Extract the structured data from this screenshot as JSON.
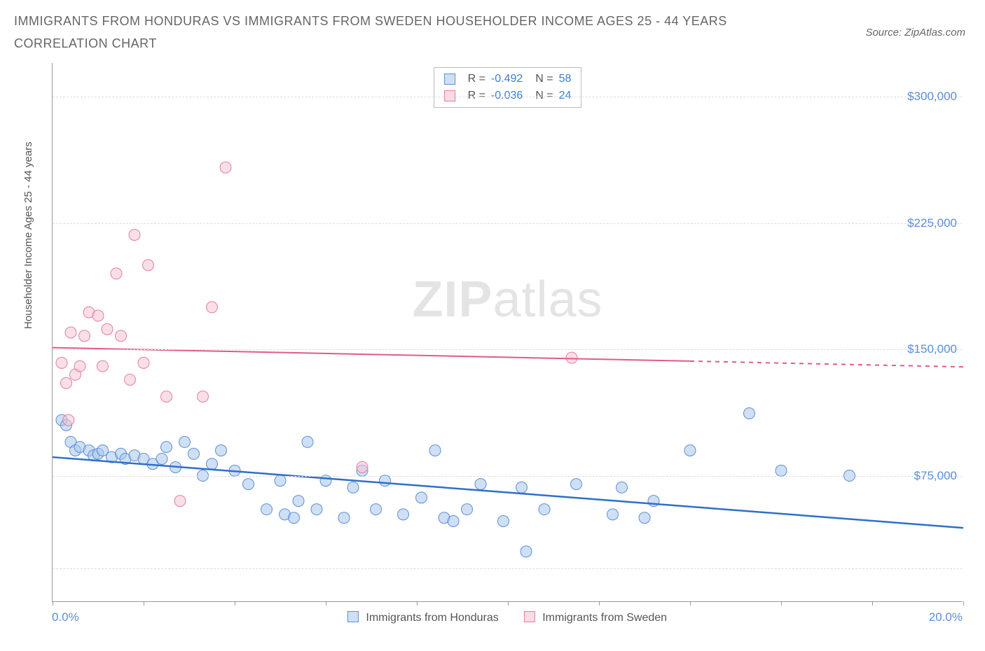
{
  "title": "IMMIGRANTS FROM HONDURAS VS IMMIGRANTS FROM SWEDEN HOUSEHOLDER INCOME AGES 25 - 44 YEARS CORRELATION CHART",
  "source_label": "Source: ZipAtlas.com",
  "watermark": {
    "part1": "ZIP",
    "part2": "atlas"
  },
  "ylabel": "Householder Income Ages 25 - 44 years",
  "chart": {
    "type": "scatter",
    "xlim": [
      0,
      20
    ],
    "ylim": [
      0,
      320000
    ],
    "xtick_positions": [
      0,
      2,
      4,
      6,
      8,
      10,
      12,
      14,
      16,
      18,
      20
    ],
    "xlabel_min": "0.0%",
    "xlabel_max": "20.0%",
    "ytick_values": [
      75000,
      150000,
      225000,
      300000
    ],
    "ytick_labels": [
      "$75,000",
      "$150,000",
      "$225,000",
      "$300,000"
    ],
    "grid_dash_extra": [
      20000
    ],
    "background_color": "#ffffff",
    "grid_color": "#dddddd",
    "axis_color": "#999999",
    "label_color": "#5b8fd6",
    "marker_radius": 8,
    "marker_opacity": 0.55,
    "series": [
      {
        "name": "Immigrants from Honduras",
        "color_fill": "#a8c7ec",
        "color_stroke": "#5b8fd6",
        "swatch_fill": "#cfe0f5",
        "R": "-0.492",
        "N": "58",
        "trend": {
          "x1": 0,
          "y1": 86000,
          "x2": 20,
          "y2": 44000,
          "color": "#2f6fc9",
          "width": 2.5
        },
        "points": [
          [
            0.2,
            108000
          ],
          [
            0.3,
            105000
          ],
          [
            0.4,
            95000
          ],
          [
            0.5,
            90000
          ],
          [
            0.6,
            92000
          ],
          [
            0.8,
            90000
          ],
          [
            0.9,
            87000
          ],
          [
            1.0,
            88000
          ],
          [
            1.1,
            90000
          ],
          [
            1.3,
            86000
          ],
          [
            1.5,
            88000
          ],
          [
            1.6,
            85000
          ],
          [
            1.8,
            87000
          ],
          [
            2.0,
            85000
          ],
          [
            2.2,
            82000
          ],
          [
            2.4,
            85000
          ],
          [
            2.5,
            92000
          ],
          [
            2.7,
            80000
          ],
          [
            2.9,
            95000
          ],
          [
            3.1,
            88000
          ],
          [
            3.3,
            75000
          ],
          [
            3.5,
            82000
          ],
          [
            3.7,
            90000
          ],
          [
            4.0,
            78000
          ],
          [
            4.3,
            70000
          ],
          [
            4.7,
            55000
          ],
          [
            5.0,
            72000
          ],
          [
            5.1,
            52000
          ],
          [
            5.3,
            50000
          ],
          [
            5.4,
            60000
          ],
          [
            5.6,
            95000
          ],
          [
            5.8,
            55000
          ],
          [
            6.0,
            72000
          ],
          [
            6.4,
            50000
          ],
          [
            6.6,
            68000
          ],
          [
            6.8,
            78000
          ],
          [
            7.1,
            55000
          ],
          [
            7.3,
            72000
          ],
          [
            7.7,
            52000
          ],
          [
            8.1,
            62000
          ],
          [
            8.4,
            90000
          ],
          [
            8.6,
            50000
          ],
          [
            8.8,
            48000
          ],
          [
            9.1,
            55000
          ],
          [
            9.4,
            70000
          ],
          [
            9.9,
            48000
          ],
          [
            10.3,
            68000
          ],
          [
            10.4,
            30000
          ],
          [
            10.8,
            55000
          ],
          [
            11.5,
            70000
          ],
          [
            12.3,
            52000
          ],
          [
            12.5,
            68000
          ],
          [
            13.0,
            50000
          ],
          [
            13.2,
            60000
          ],
          [
            14.0,
            90000
          ],
          [
            15.3,
            112000
          ],
          [
            16.0,
            78000
          ],
          [
            17.5,
            75000
          ]
        ]
      },
      {
        "name": "Immigrants from Sweden",
        "color_fill": "#f5c5d3",
        "color_stroke": "#e37fa0",
        "swatch_fill": "#f9dbe4",
        "R": "-0.036",
        "N": "24",
        "trend": {
          "x1": 0,
          "y1": 151000,
          "x2": 14,
          "y2": 143000,
          "dash_to": 20,
          "color": "#e15a8a",
          "width": 2
        },
        "points": [
          [
            0.2,
            142000
          ],
          [
            0.3,
            130000
          ],
          [
            0.4,
            160000
          ],
          [
            0.35,
            108000
          ],
          [
            0.5,
            135000
          ],
          [
            0.6,
            140000
          ],
          [
            0.7,
            158000
          ],
          [
            0.8,
            172000
          ],
          [
            1.0,
            170000
          ],
          [
            1.1,
            140000
          ],
          [
            1.2,
            162000
          ],
          [
            1.4,
            195000
          ],
          [
            1.5,
            158000
          ],
          [
            1.7,
            132000
          ],
          [
            1.8,
            218000
          ],
          [
            2.0,
            142000
          ],
          [
            2.1,
            200000
          ],
          [
            2.5,
            122000
          ],
          [
            2.8,
            60000
          ],
          [
            3.3,
            122000
          ],
          [
            3.5,
            175000
          ],
          [
            3.8,
            258000
          ],
          [
            6.8,
            80000
          ],
          [
            11.4,
            145000
          ]
        ]
      }
    ]
  },
  "bottom_legend": [
    {
      "label": "Immigrants from Honduras",
      "fill": "#cfe0f5",
      "stroke": "#5b8fd6"
    },
    {
      "label": "Immigrants from Sweden",
      "fill": "#f9dbe4",
      "stroke": "#e37fa0"
    }
  ]
}
